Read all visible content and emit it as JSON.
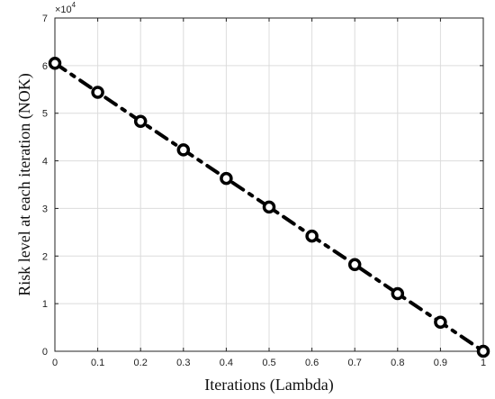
{
  "chart_data": {
    "type": "line",
    "title": "",
    "xlabel": "Iterations (Lambda)",
    "ylabel": "Risk level at each iteration (NOK)",
    "exponent_label": "×10",
    "exponent_power": "4",
    "xlim": [
      0,
      1
    ],
    "ylim": [
      0,
      70000
    ],
    "x_ticks": [
      0,
      0.1,
      0.2,
      0.3,
      0.4,
      0.5,
      0.6,
      0.7,
      0.8,
      0.9,
      1
    ],
    "x_tick_labels": [
      "0",
      "0.1",
      "0.2",
      "0.3",
      "0.4",
      "0.5",
      "0.6",
      "0.7",
      "0.8",
      "0.9",
      "1"
    ],
    "y_ticks": [
      0,
      10000,
      20000,
      30000,
      40000,
      50000,
      60000,
      70000
    ],
    "y_tick_labels": [
      "0",
      "1",
      "2",
      "3",
      "4",
      "5",
      "6",
      "7"
    ],
    "grid": true,
    "series": [
      {
        "x": [
          0,
          0.1,
          0.2,
          0.3,
          0.4,
          0.5,
          0.6,
          0.7,
          0.8,
          0.9,
          1
        ],
        "y": [
          60500,
          54400,
          48300,
          42300,
          36300,
          30300,
          24200,
          18200,
          12100,
          6100,
          0
        ],
        "color": "#000000",
        "line_style": "dash-dot",
        "marker": "open-circle"
      }
    ]
  }
}
